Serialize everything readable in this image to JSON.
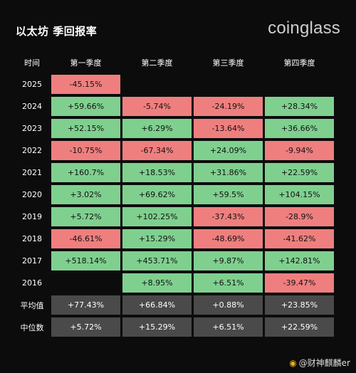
{
  "header": {
    "title": "以太坊 季回报率",
    "brand": "coinglass"
  },
  "watermark": {
    "text": "@财神麒麟er"
  },
  "colors": {
    "positive": "#7fd08f",
    "negative": "#ef7f7f",
    "summary": "#4a4a4a",
    "background": "#0c0c0c"
  },
  "chart_data": {
    "type": "heatmap",
    "title": "以太坊 季回报率",
    "corner_label": "时间",
    "columns": [
      "第一季度",
      "第二季度",
      "第三季度",
      "第四季度"
    ],
    "rows": [
      {
        "label": "2025",
        "values": [
          "-45.15%",
          "",
          "",
          ""
        ]
      },
      {
        "label": "2024",
        "values": [
          "+59.66%",
          "-5.74%",
          "-24.19%",
          "+28.34%"
        ]
      },
      {
        "label": "2023",
        "values": [
          "+52.15%",
          "+6.29%",
          "-13.64%",
          "+36.66%"
        ]
      },
      {
        "label": "2022",
        "values": [
          "-10.75%",
          "-67.34%",
          "+24.09%",
          "-9.94%"
        ]
      },
      {
        "label": "2021",
        "values": [
          "+160.7%",
          "+18.53%",
          "+31.86%",
          "+22.59%"
        ]
      },
      {
        "label": "2020",
        "values": [
          "+3.02%",
          "+69.62%",
          "+59.5%",
          "+104.15%"
        ]
      },
      {
        "label": "2019",
        "values": [
          "+5.72%",
          "+102.25%",
          "-37.43%",
          "-28.9%"
        ]
      },
      {
        "label": "2018",
        "values": [
          "-46.61%",
          "+15.29%",
          "-48.69%",
          "-41.62%"
        ]
      },
      {
        "label": "2017",
        "values": [
          "+518.14%",
          "+453.71%",
          "+9.87%",
          "+142.81%"
        ]
      },
      {
        "label": "2016",
        "values": [
          "",
          "+8.95%",
          "+6.51%",
          "-39.47%"
        ]
      }
    ],
    "summary": [
      {
        "label": "平均值",
        "values": [
          "+77.43%",
          "+66.84%",
          "+0.88%",
          "+23.85%"
        ]
      },
      {
        "label": "中位数",
        "values": [
          "+5.72%",
          "+15.29%",
          "+6.51%",
          "+22.59%"
        ]
      }
    ]
  }
}
